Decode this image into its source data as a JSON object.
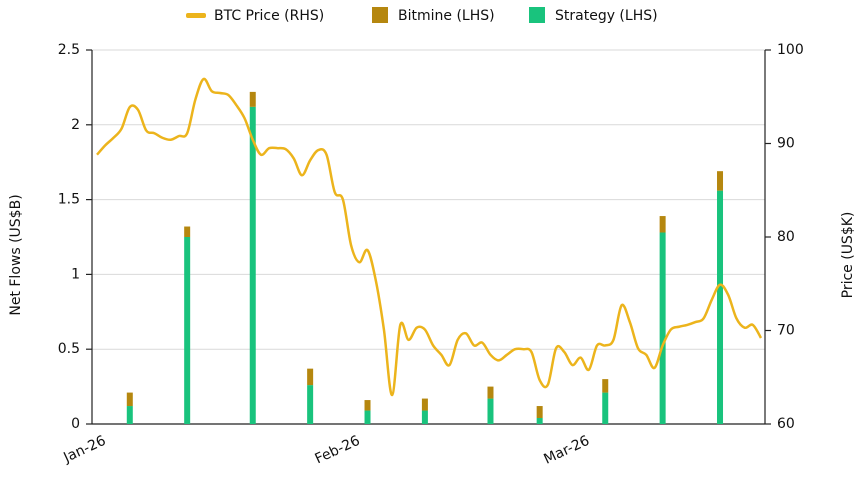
{
  "chart_data": {
    "type": "bar-line",
    "y_label": "Net Flows (US$B)",
    "y2_label": "Price (US$K)",
    "categories": [
      "Jan-26",
      null,
      null,
      null,
      null,
      null,
      null,
      null,
      null,
      null,
      null,
      null,
      null,
      null,
      null,
      null,
      null,
      null,
      null,
      null,
      null,
      null,
      null,
      null,
      null,
      null,
      null,
      null,
      null,
      null,
      null,
      "Feb-26",
      null,
      null,
      null,
      null,
      null,
      null,
      null,
      null,
      null,
      null,
      null,
      null,
      null,
      null,
      null,
      null,
      null,
      null,
      null,
      null,
      null,
      null,
      null,
      null,
      null,
      null,
      null,
      "Mar-26",
      null,
      null,
      null,
      null,
      null,
      null,
      null,
      null,
      null,
      null,
      null,
      null,
      null,
      null,
      null,
      null,
      null,
      null,
      null,
      null,
      null,
      null
    ],
    "series": [
      {
        "name": "BTC Price (RHS)",
        "type": "line",
        "axis": "y2",
        "color": "#ecb41c",
        "values": [
          88.8,
          89.8,
          90.6,
          91.6,
          93.9,
          93.6,
          91.4,
          91.1,
          90.6,
          90.4,
          90.8,
          91.1,
          94.7,
          96.9,
          95.6,
          95.4,
          95.2,
          94.1,
          92.7,
          90.4,
          88.8,
          89.5,
          89.5,
          89.4,
          88.4,
          86.6,
          88.2,
          89.3,
          88.8,
          84.8,
          84.0,
          79.1,
          77.3,
          78.6,
          75.4,
          70.1,
          63.1,
          70.6,
          69.0,
          70.3,
          70.1,
          68.4,
          67.4,
          66.3,
          69.0,
          69.7,
          68.4,
          68.7,
          67.4,
          66.8,
          67.4,
          68.0,
          68.0,
          67.7,
          64.7,
          64.2,
          68.1,
          67.7,
          66.3,
          67.1,
          65.8,
          68.4,
          68.4,
          69.0,
          72.7,
          70.9,
          68.1,
          67.4,
          66.0,
          68.4,
          70.1,
          70.4,
          70.6,
          70.9,
          71.3,
          73.3,
          74.9,
          73.8,
          71.3,
          70.3,
          70.6,
          69.2
        ]
      },
      {
        "name": "Bitmine (LHS)",
        "type": "bar",
        "color": "#b5870f",
        "values": [
          null,
          null,
          null,
          null,
          0.09,
          null,
          null,
          null,
          null,
          null,
          null,
          0.07,
          null,
          null,
          null,
          null,
          null,
          null,
          null,
          0.1,
          null,
          null,
          null,
          null,
          null,
          null,
          0.11,
          null,
          null,
          null,
          null,
          null,
          null,
          0.07,
          null,
          null,
          null,
          null,
          null,
          null,
          0.08,
          null,
          null,
          null,
          null,
          null,
          null,
          null,
          0.08,
          null,
          null,
          null,
          null,
          null,
          0.08,
          null,
          null,
          null,
          null,
          null,
          null,
          null,
          0.09,
          null,
          null,
          null,
          null,
          null,
          null,
          0.11,
          null,
          null,
          null,
          null,
          null,
          null,
          0.13,
          null,
          null,
          null,
          null,
          null
        ]
      },
      {
        "name": "Strategy (LHS)",
        "type": "bar",
        "color": "#19c37d",
        "values": [
          null,
          null,
          null,
          null,
          0.12,
          null,
          null,
          null,
          null,
          null,
          null,
          1.25,
          null,
          null,
          null,
          null,
          null,
          null,
          null,
          2.12,
          null,
          null,
          null,
          null,
          null,
          null,
          0.26,
          null,
          null,
          null,
          null,
          null,
          null,
          0.09,
          null,
          null,
          null,
          null,
          null,
          null,
          0.09,
          null,
          null,
          null,
          null,
          null,
          null,
          null,
          0.17,
          null,
          null,
          null,
          null,
          null,
          0.04,
          null,
          null,
          null,
          null,
          null,
          null,
          null,
          0.21,
          null,
          null,
          null,
          null,
          null,
          null,
          1.28,
          null,
          null,
          null,
          null,
          null,
          null,
          1.56,
          null,
          null,
          null,
          null,
          null
        ]
      }
    ],
    "ylim": [
      0,
      2.5
    ],
    "yticks": [
      0,
      0.5,
      1,
      1.5,
      2,
      2.5
    ],
    "y2lim": [
      60,
      100
    ],
    "y2ticks": [
      60,
      70,
      80,
      90,
      100
    ],
    "grid": true,
    "legend": "top"
  }
}
